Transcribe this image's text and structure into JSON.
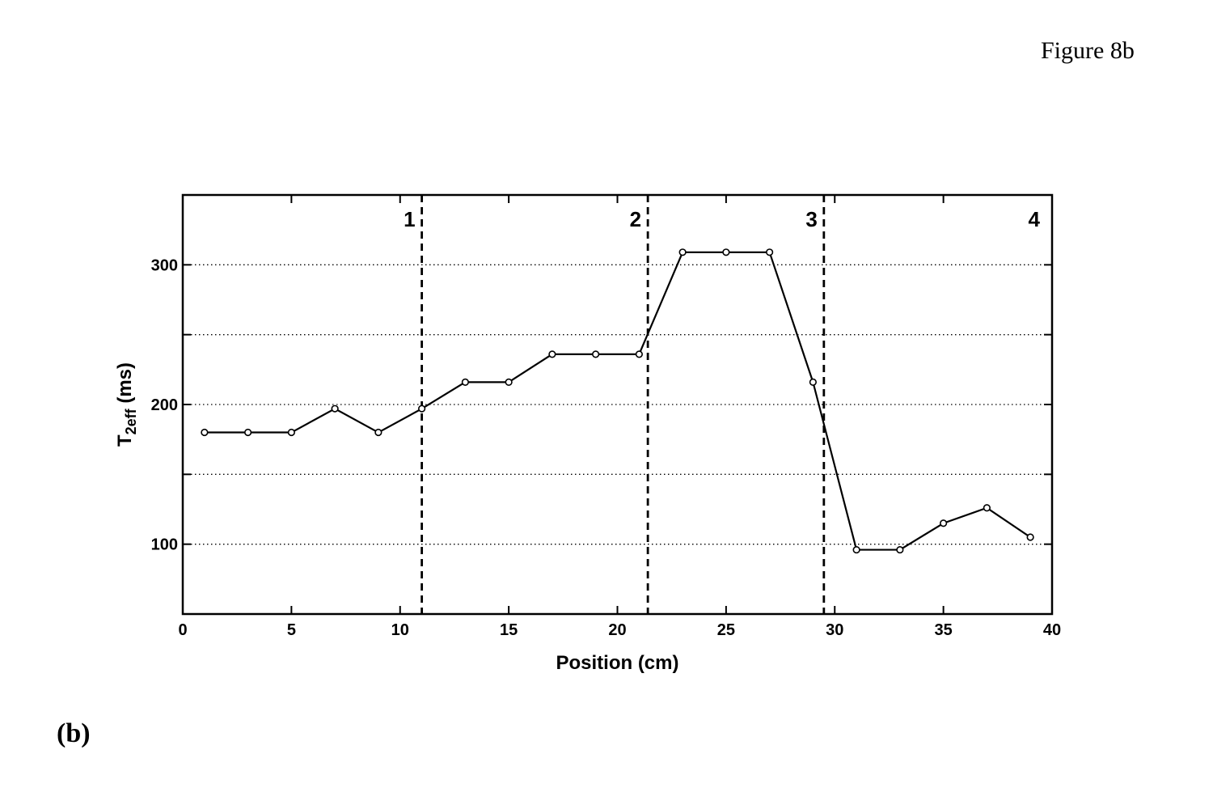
{
  "figure_label": "Figure 8b",
  "panel_label": "(b)",
  "chart_data": {
    "type": "line",
    "title": "",
    "xlabel": "Position (cm)",
    "ylabel_main": "T",
    "ylabel_sub": "2eff",
    "ylabel_unit": " (ms)",
    "xlim": [
      0,
      40
    ],
    "ylim": [
      50,
      350
    ],
    "xticks": [
      0,
      5,
      10,
      15,
      20,
      25,
      30,
      35,
      40
    ],
    "yticks": [
      100,
      200,
      300
    ],
    "ygrid": [
      100,
      150,
      200,
      250,
      300
    ],
    "grid": "horizontal dotted",
    "line_color": "#000000",
    "marker": "circle",
    "series": [
      {
        "x": [
          1,
          3,
          5,
          7,
          9,
          11,
          13,
          15,
          17,
          19,
          21,
          23,
          25,
          27,
          29,
          31,
          33,
          35,
          37,
          39
        ],
        "y": [
          180,
          180,
          180,
          197,
          180,
          197,
          216,
          216,
          236,
          236,
          236,
          309,
          309,
          309,
          216,
          96,
          96,
          115,
          126,
          105
        ]
      }
    ],
    "region_boundaries": [
      {
        "x": 11,
        "label": "1"
      },
      {
        "x": 21.4,
        "label": "2"
      },
      {
        "x": 29.5,
        "label": "3"
      }
    ],
    "extra_region_label": "4"
  }
}
